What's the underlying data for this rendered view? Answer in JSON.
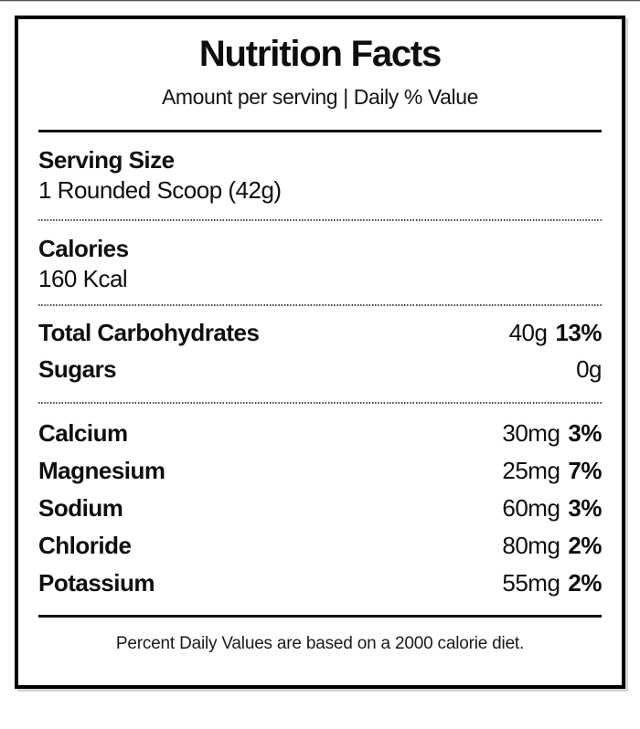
{
  "label": {
    "title": "Nutrition Facts",
    "subtitle": "Amount per serving | Daily % Value",
    "serving": {
      "label": "Serving Size",
      "value": "1 Rounded Scoop (42g)"
    },
    "calories": {
      "label": "Calories",
      "value": "160 Kcal"
    },
    "macros": [
      {
        "label": "Total Carbohydrates",
        "amount": "40g",
        "dv": "13%"
      },
      {
        "label": "Sugars",
        "amount": "0g",
        "dv": ""
      }
    ],
    "minerals": [
      {
        "label": "Calcium",
        "amount": "30mg",
        "dv": "3%"
      },
      {
        "label": "Magnesium",
        "amount": "25mg",
        "dv": "7%"
      },
      {
        "label": "Sodium",
        "amount": "60mg",
        "dv": "3%"
      },
      {
        "label": "Chloride",
        "amount": "80mg",
        "dv": "2%"
      },
      {
        "label": "Potassium",
        "amount": "55mg",
        "dv": "2%"
      }
    ],
    "footnote": "Percent Daily Values are based on a 2000 calorie diet.",
    "colors": {
      "text": "#0e0e0e",
      "border": "#000000",
      "background": "#ffffff"
    }
  }
}
